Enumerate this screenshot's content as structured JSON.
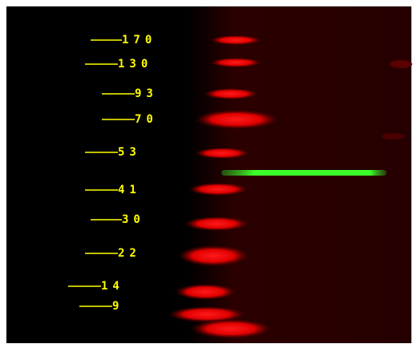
{
  "markers": [
    "170",
    "130",
    "93",
    "70",
    "53",
    "41",
    "30",
    "22",
    "14",
    "9"
  ]
}
